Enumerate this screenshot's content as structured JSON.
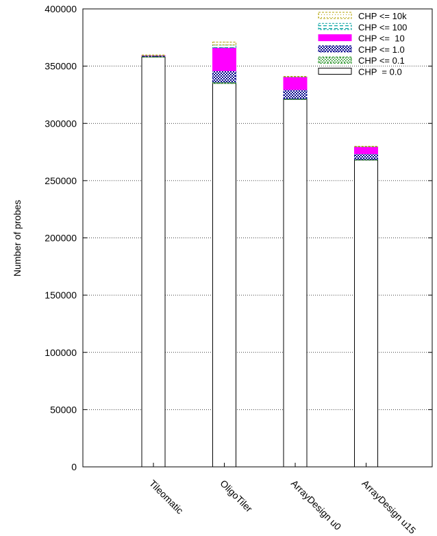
{
  "chart_data": {
    "type": "bar",
    "stacked": true,
    "title": "",
    "xlabel": "",
    "ylabel": "Number of probes",
    "ylim": [
      0,
      400000
    ],
    "yticks": [
      0,
      50000,
      100000,
      150000,
      200000,
      250000,
      300000,
      350000,
      400000
    ],
    "grid": "horizontal dotted",
    "legend_position": "top-right",
    "categories": [
      "Tileomatic",
      "OligoTiler",
      "ArrayDesign u0",
      "ArrayDesign u15"
    ],
    "series": [
      {
        "name": "CHP  = 0.0",
        "color": "#ffffff",
        "pattern": "empty",
        "values": [
          358000,
          335000,
          321000,
          268000
        ]
      },
      {
        "name": "CHP <= 0.1",
        "color": "#008000",
        "pattern": "dots",
        "values": [
          500,
          1000,
          500,
          500
        ]
      },
      {
        "name": "CHP <= 1.0",
        "color": "#00008b",
        "pattern": "crosshatch",
        "values": [
          500,
          10000,
          8000,
          5000
        ]
      },
      {
        "name": "CHP <=  10",
        "color": "#ff00ff",
        "pattern": "solid",
        "values": [
          300,
          20000,
          11000,
          6000
        ]
      },
      {
        "name": "CHP <= 100",
        "color": "#00a0a0",
        "pattern": "dashes",
        "values": [
          200,
          2500,
          300,
          300
        ]
      },
      {
        "name": "CHP <= 10k",
        "color": "#b0a000",
        "pattern": "dotted-outline",
        "values": [
          200,
          2500,
          200,
          200
        ]
      }
    ],
    "legend_order": [
      "CHP <= 10k",
      "CHP <= 100",
      "CHP <=  10",
      "CHP <= 1.0",
      "CHP <= 0.1",
      "CHP  = 0.0"
    ]
  }
}
